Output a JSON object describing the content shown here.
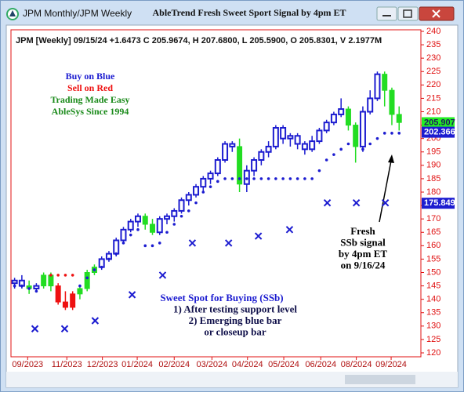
{
  "window": {
    "title": "JPM Monthly/JPM Weekly"
  },
  "chart_data": {
    "type": "candlestick",
    "title": "AbleTrend Fresh Sweet Sport Signal by 4pm ET",
    "subtitle": "JPM [Weekly] 09/15/24 +1.6473 C 205.9674, H 207.6800, L 205.5900, O 205.8301, V 2.1977M",
    "x": [
      0,
      1,
      2,
      3,
      4,
      5,
      6,
      7,
      8,
      9,
      10,
      11,
      12,
      13,
      14,
      15,
      16,
      17,
      18,
      19,
      20,
      21,
      22,
      23,
      24,
      25,
      26,
      27,
      28,
      29,
      30,
      31,
      32,
      33,
      34,
      35,
      36,
      37,
      38,
      39,
      40,
      41,
      42,
      43,
      44,
      45,
      46,
      47,
      48,
      49,
      50,
      51,
      52,
      53
    ],
    "open": [
      146,
      147,
      145,
      144,
      145,
      149,
      145,
      139,
      137,
      142,
      144,
      150,
      152,
      155,
      157,
      162,
      166,
      169,
      171,
      168,
      165,
      170,
      171,
      173,
      177,
      179,
      182,
      185,
      187,
      192,
      198,
      197,
      183,
      188,
      192,
      195,
      197,
      204,
      200,
      201,
      198,
      196,
      199,
      203,
      206,
      209,
      211,
      205,
      197,
      210,
      215,
      224,
      218,
      209
    ],
    "high": [
      148,
      149,
      147,
      146,
      150,
      150,
      146,
      143,
      143,
      145,
      151,
      153,
      156,
      158,
      163,
      167,
      170,
      172,
      172,
      170,
      171,
      172,
      174,
      178,
      180,
      183,
      186,
      188,
      193,
      199,
      199,
      200,
      190,
      193,
      196,
      199,
      205,
      205,
      202,
      202,
      199,
      201,
      204,
      207,
      210,
      215,
      212,
      206,
      212,
      218,
      225,
      225,
      219,
      212
    ],
    "low": [
      144,
      144,
      142,
      143,
      144,
      143,
      138,
      136,
      136,
      140,
      143,
      149,
      151,
      154,
      156,
      161,
      165,
      167,
      166,
      164,
      164,
      168,
      169,
      172,
      175,
      178,
      180,
      183,
      186,
      191,
      195,
      180,
      180,
      186,
      190,
      193,
      196,
      198,
      197,
      196,
      194,
      195,
      198,
      202,
      205,
      208,
      203,
      191,
      195,
      209,
      214,
      212,
      205,
      203
    ],
    "close": [
      147,
      145,
      144,
      145,
      149,
      145,
      139,
      137,
      142,
      144,
      150,
      152,
      155,
      157,
      162,
      166,
      169,
      171,
      168,
      165,
      170,
      171,
      173,
      177,
      179,
      182,
      185,
      187,
      192,
      198,
      197,
      183,
      188,
      192,
      195,
      197,
      204,
      200,
      201,
      198,
      196,
      199,
      203,
      206,
      209,
      211,
      205,
      197,
      210,
      215,
      224,
      218,
      209,
      206
    ],
    "colors": [
      "#1c1cd0",
      "#1c1cd0",
      "#22dd22",
      "#1c1cd0",
      "#22dd22",
      "#22dd22",
      "#ee1111",
      "#ee1111",
      "#ee1111",
      "#22dd22",
      "#22dd22",
      "#22dd22",
      "#1c1cd0",
      "#1c1cd0",
      "#1c1cd0",
      "#1c1cd0",
      "#1c1cd0",
      "#1c1cd0",
      "#22dd22",
      "#22dd22",
      "#1c1cd0",
      "#1c1cd0",
      "#1c1cd0",
      "#1c1cd0",
      "#1c1cd0",
      "#1c1cd0",
      "#1c1cd0",
      "#1c1cd0",
      "#1c1cd0",
      "#1c1cd0",
      "#1c1cd0",
      "#22dd22",
      "#1c1cd0",
      "#1c1cd0",
      "#1c1cd0",
      "#1c1cd0",
      "#1c1cd0",
      "#1c1cd0",
      "#1c1cd0",
      "#1c1cd0",
      "#1c1cd0",
      "#1c1cd0",
      "#1c1cd0",
      "#1c1cd0",
      "#1c1cd0",
      "#1c1cd0",
      "#22dd22",
      "#22dd22",
      "#1c1cd0",
      "#1c1cd0",
      "#1c1cd0",
      "#22dd22",
      "#22dd22",
      "#22dd22"
    ],
    "dots": [
      {
        "color": "#1c1cd0",
        "values": [
          145,
          145,
          144,
          143,
          null,
          null,
          null,
          null,
          null,
          145,
          148,
          151,
          152,
          155,
          157,
          161,
          164,
          166,
          160,
          160,
          161,
          165,
          168,
          171,
          173,
          176,
          180,
          182,
          184,
          185,
          185,
          185,
          185,
          185,
          185,
          185,
          185,
          185,
          185,
          185,
          185,
          185,
          188,
          192,
          194,
          196,
          198,
          null,
          196,
          198,
          200,
          202,
          202,
          202
        ]
      },
      {
        "color": "#ee1111",
        "values": [
          null,
          null,
          null,
          null,
          null,
          149,
          149,
          149,
          149,
          null,
          null,
          null,
          null,
          null,
          null,
          null,
          null,
          null,
          null,
          null,
          null,
          null,
          null,
          null,
          null,
          null,
          null,
          null,
          null,
          null,
          null,
          null,
          null,
          null,
          null,
          null,
          null,
          null,
          null,
          null,
          null,
          null,
          null,
          null,
          null,
          null,
          null,
          null,
          null,
          null,
          null,
          null,
          null,
          null
        ]
      }
    ],
    "marks": {
      "color": "#1c1cd0",
      "x": [
        2.8,
        6.9,
        11.1,
        16.2,
        20.4,
        24.5,
        29.5,
        33.6,
        37.9,
        43.1,
        47.1,
        51.1
      ],
      "values": [
        129,
        129,
        132,
        141.7,
        149,
        161,
        161,
        163.6,
        166,
        176,
        176,
        176
      ]
    },
    "price_labels": [
      {
        "value": 205.907,
        "color": "#22ee22"
      },
      {
        "value": 202.366,
        "color": "#1c1cd0"
      },
      {
        "value": 175.849,
        "color": "#1c1cd0"
      }
    ],
    "xlim": [
      -0.5,
      56
    ],
    "xticks": [
      {
        "value": 1.8,
        "label": "09/2023"
      },
      {
        "value": 7.2,
        "label": "11/2023"
      },
      {
        "value": 12.1,
        "label": "12/2023"
      },
      {
        "value": 16.9,
        "label": "01/2024"
      },
      {
        "value": 22,
        "label": "02/2024"
      },
      {
        "value": 27.2,
        "label": "03/2024"
      },
      {
        "value": 32.1,
        "label": "04/2024"
      },
      {
        "value": 37.1,
        "label": "05/2024"
      },
      {
        "value": 42.2,
        "label": "06/2024"
      },
      {
        "value": 47.1,
        "label": "08/2024"
      },
      {
        "value": 51.9,
        "label": "09/2024"
      }
    ],
    "ylim": [
      120,
      240
    ],
    "yticks": [
      120,
      125,
      130,
      135,
      140,
      145,
      150,
      155,
      160,
      165,
      170,
      175,
      180,
      185,
      190,
      195,
      200,
      205,
      210,
      215,
      220,
      225,
      230,
      235,
      240
    ],
    "legend_notes": [
      {
        "text": "Buy on Blue",
        "color": "#1c1cd0"
      },
      {
        "text": "Sell on Red",
        "color": "#ee1111"
      },
      {
        "text": "Trading Made Easy",
        "color": "#1a8a1a"
      },
      {
        "text": "AbleSys Since 1994",
        "color": "#1a8a1a"
      }
    ],
    "ssb_notes": [
      "Sweet Spot for Buying (SSb)",
      "1) After testing support level",
      "2) Emerging blue bar",
      "or closeup bar"
    ],
    "fresh_notes": [
      "Fresh",
      "SSb signal",
      "by 4pm ET",
      "on 9/16/24"
    ]
  }
}
